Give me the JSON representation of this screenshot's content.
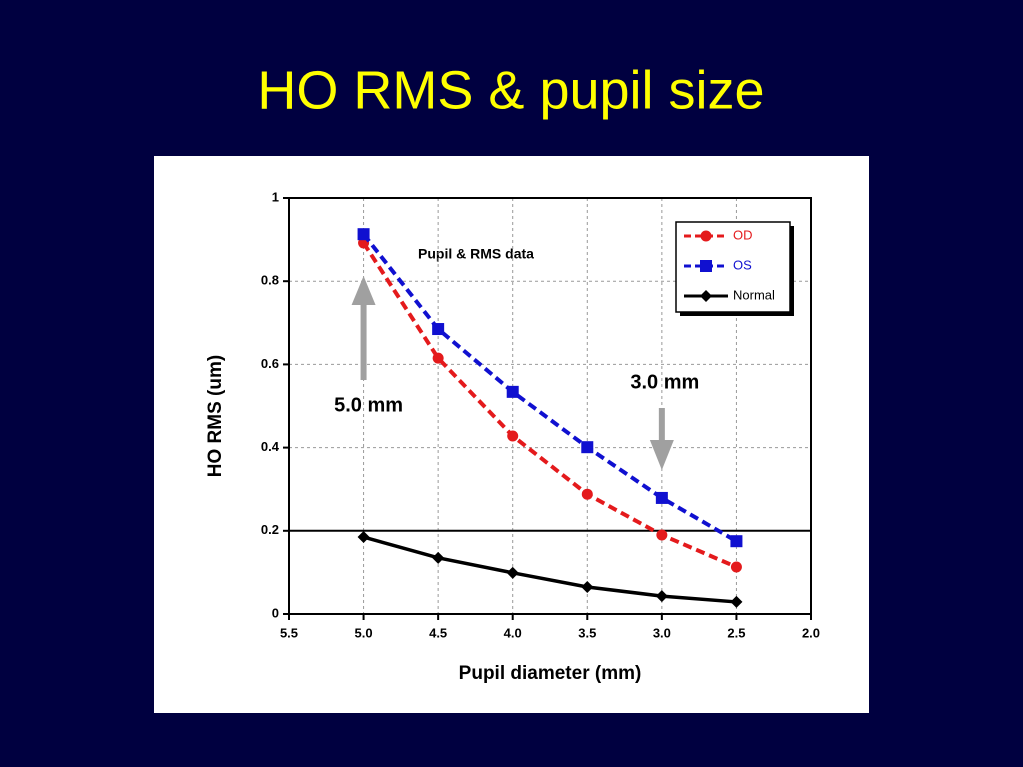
{
  "chart_data": {
    "type": "line",
    "title": "HO RMS & pupil size",
    "subtitle": "Pupil & RMS data",
    "x_label": "Pupil diameter (mm)",
    "y_label": "HO RMS (um)",
    "x": [
      5.0,
      4.5,
      4.0,
      3.5,
      3.0,
      2.5
    ],
    "series": [
      {
        "name": "OD",
        "color": "#e41a1c",
        "dash": true,
        "marker": "circle",
        "values": [
          0.892,
          0.615,
          0.428,
          0.288,
          0.19,
          0.113
        ]
      },
      {
        "name": "OS",
        "color": "#1010d0",
        "dash": true,
        "marker": "square",
        "values": [
          0.913,
          0.685,
          0.534,
          0.401,
          0.279,
          0.175
        ]
      },
      {
        "name": "Normal",
        "color": "#000000",
        "dash": false,
        "marker": "diamond",
        "values": [
          0.185,
          0.135,
          0.099,
          0.065,
          0.043,
          0.029
        ]
      }
    ],
    "xlim": [
      5.5,
      2.0
    ],
    "ylim": [
      0,
      1
    ],
    "xticks": [
      5.5,
      {
        "value": 5,
        "label": "5.0"
      },
      4.5,
      {
        "value": 4,
        "label": "4.0"
      },
      3.5,
      {
        "value": 3,
        "label": "3.0"
      },
      2.5,
      {
        "value": 2,
        "label": "2.0"
      }
    ],
    "yticks": [
      0,
      0.2,
      0.4,
      0.6,
      0.8,
      1
    ],
    "hline": 0.2,
    "grid": true,
    "annotations": [
      {
        "text": "5.0 mm",
        "x": 5,
        "direction": "up"
      },
      {
        "text": "3.0 mm",
        "x": 3,
        "direction": "down"
      }
    ],
    "legend": "top-right"
  }
}
